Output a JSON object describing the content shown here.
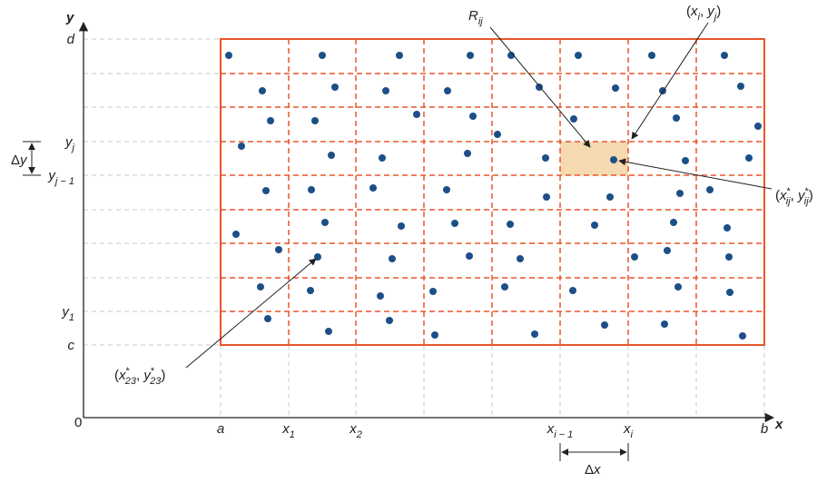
{
  "axes": {
    "y": "y",
    "x": "x",
    "origin": "0"
  },
  "y_labels": [
    [
      {
        "text": "d",
        "style": "it"
      }
    ],
    [
      {
        "text": "y",
        "style": "it"
      },
      {
        "text": "j",
        "style": "sub"
      }
    ],
    [
      {
        "text": "y",
        "style": "it"
      },
      {
        "text": "j − 1",
        "style": "sub"
      }
    ],
    [
      {
        "text": "y",
        "style": "it"
      },
      {
        "text": "1",
        "style": "sub"
      }
    ],
    [
      {
        "text": "c",
        "style": "it"
      }
    ]
  ],
  "x_labels": [
    [
      {
        "text": "a",
        "style": "it"
      }
    ],
    [
      {
        "text": "x",
        "style": "it"
      },
      {
        "text": "1",
        "style": "sub"
      }
    ],
    [
      {
        "text": "x",
        "style": "it"
      },
      {
        "text": "2",
        "style": "sub"
      }
    ],
    [
      {
        "text": "x",
        "style": "it"
      },
      {
        "text": "i − 1",
        "style": "sub"
      }
    ],
    [
      {
        "text": "x",
        "style": "it"
      },
      {
        "text": "i",
        "style": "sub"
      }
    ],
    [
      {
        "text": "b",
        "style": "it"
      }
    ]
  ],
  "delta_y": [
    {
      "text": "Δ"
    },
    {
      "text": "y",
      "style": "it"
    }
  ],
  "delta_x": [
    {
      "text": "Δ"
    },
    {
      "text": "x",
      "style": "it"
    }
  ],
  "annotations": {
    "rij": [
      {
        "text": "R",
        "style": "it"
      },
      {
        "text": "ij",
        "style": "sub"
      }
    ],
    "xiyj": [
      {
        "text": "("
      },
      {
        "text": "x",
        "style": "it"
      },
      {
        "text": "i",
        "style": "sub"
      },
      {
        "text": ", "
      },
      {
        "text": "y",
        "style": "it"
      },
      {
        "text": "j",
        "style": "sub"
      },
      {
        "text": ")"
      }
    ],
    "sample_ij": [
      {
        "text": "("
      },
      {
        "text": "x",
        "style": "it"
      },
      {
        "text": "*",
        "style": "sup"
      },
      {
        "text": "ij",
        "style": "sub"
      },
      {
        "text": ", "
      },
      {
        "text": "y",
        "style": "it"
      },
      {
        "text": "*",
        "style": "sup"
      },
      {
        "text": "ij",
        "style": "sub"
      },
      {
        "text": ")"
      }
    ],
    "sample_23": [
      {
        "text": "("
      },
      {
        "text": "x",
        "style": "it"
      },
      {
        "text": "*",
        "style": "sup"
      },
      {
        "text": "23",
        "style": "sub"
      },
      {
        "text": ", "
      },
      {
        "text": "y",
        "style": "it"
      },
      {
        "text": "*",
        "style": "sup"
      },
      {
        "text": "23",
        "style": "sub"
      },
      {
        "text": ")"
      }
    ]
  }
}
